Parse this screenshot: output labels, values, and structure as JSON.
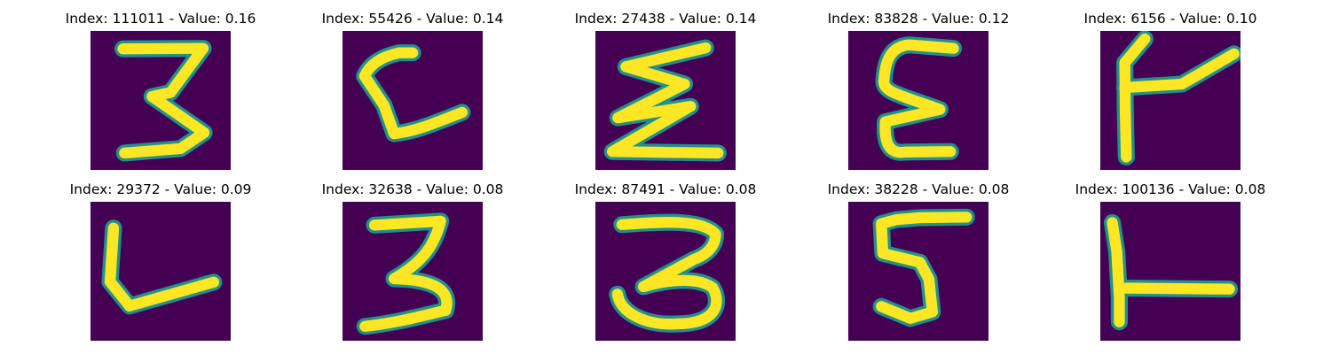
{
  "chart_data": {
    "type": "image-grid",
    "title": "",
    "rows": 2,
    "columns": 5,
    "colors": {
      "background": "#440154",
      "mid": "#21918c",
      "foreground": "#fde725"
    },
    "panels": [
      {
        "title": "Index: 111011 - Value: 0.16",
        "index": 111011,
        "value": 0.16,
        "glyph": "3"
      },
      {
        "title": "Index: 55426 - Value: 0.14",
        "index": 55426,
        "value": 0.14,
        "glyph": "C-shape"
      },
      {
        "title": "Index: 27438 - Value: 0.14",
        "index": 27438,
        "value": 0.14,
        "glyph": "zigzag"
      },
      {
        "title": "Index: 83828 - Value: 0.12",
        "index": 83828,
        "value": 0.12,
        "glyph": "E"
      },
      {
        "title": "Index: 6156 - Value: 0.10",
        "index": 6156,
        "value": 0.1,
        "glyph": "Y-shape"
      },
      {
        "title": "Index: 29372 - Value: 0.09",
        "index": 29372,
        "value": 0.09,
        "glyph": "L"
      },
      {
        "title": "Index: 32638 - Value: 0.08",
        "index": 32638,
        "value": 0.08,
        "glyph": "3"
      },
      {
        "title": "Index: 87491 - Value: 0.08",
        "index": 87491,
        "value": 0.08,
        "glyph": "3"
      },
      {
        "title": "Index: 38228 - Value: 0.08",
        "index": 38228,
        "value": 0.08,
        "glyph": "5"
      },
      {
        "title": "Index: 100136 - Value: 0.08",
        "index": 100136,
        "value": 0.08,
        "glyph": "T-shape"
      }
    ]
  }
}
